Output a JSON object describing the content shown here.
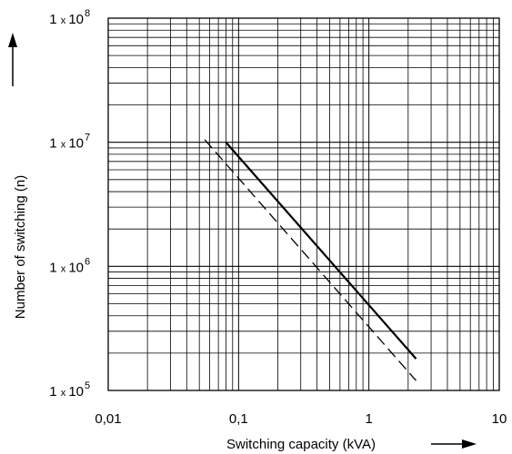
{
  "chart_data": {
    "type": "line",
    "xlabel": "Switching capacity (kVA)",
    "ylabel": "Number of switching (n)",
    "x_scale": "log",
    "y_scale": "log",
    "xlim": [
      0.01,
      10
    ],
    "ylim": [
      100000,
      100000000
    ],
    "grid": true,
    "x_ticks": [
      {
        "value": 0.01,
        "label": "0,01"
      },
      {
        "value": 0.1,
        "label": "0,1"
      },
      {
        "value": 1,
        "label": "1"
      },
      {
        "value": 10,
        "label": "10"
      }
    ],
    "y_ticks": [
      {
        "value": 100000,
        "mantissa": "1 x 10",
        "exp": "5"
      },
      {
        "value": 1000000,
        "mantissa": "1 x 10",
        "exp": "6"
      },
      {
        "value": 10000000,
        "mantissa": "1 x 10",
        "exp": "7"
      },
      {
        "value": 100000000,
        "mantissa": "1 x 10",
        "exp": "8"
      }
    ],
    "series": [
      {
        "style": "solid",
        "x": [
          0.08,
          2.3
        ],
        "y": [
          10000000,
          180000
        ]
      },
      {
        "style": "dashed",
        "x": [
          0.055,
          2.3
        ],
        "y": [
          10500000,
          120000
        ]
      }
    ]
  }
}
